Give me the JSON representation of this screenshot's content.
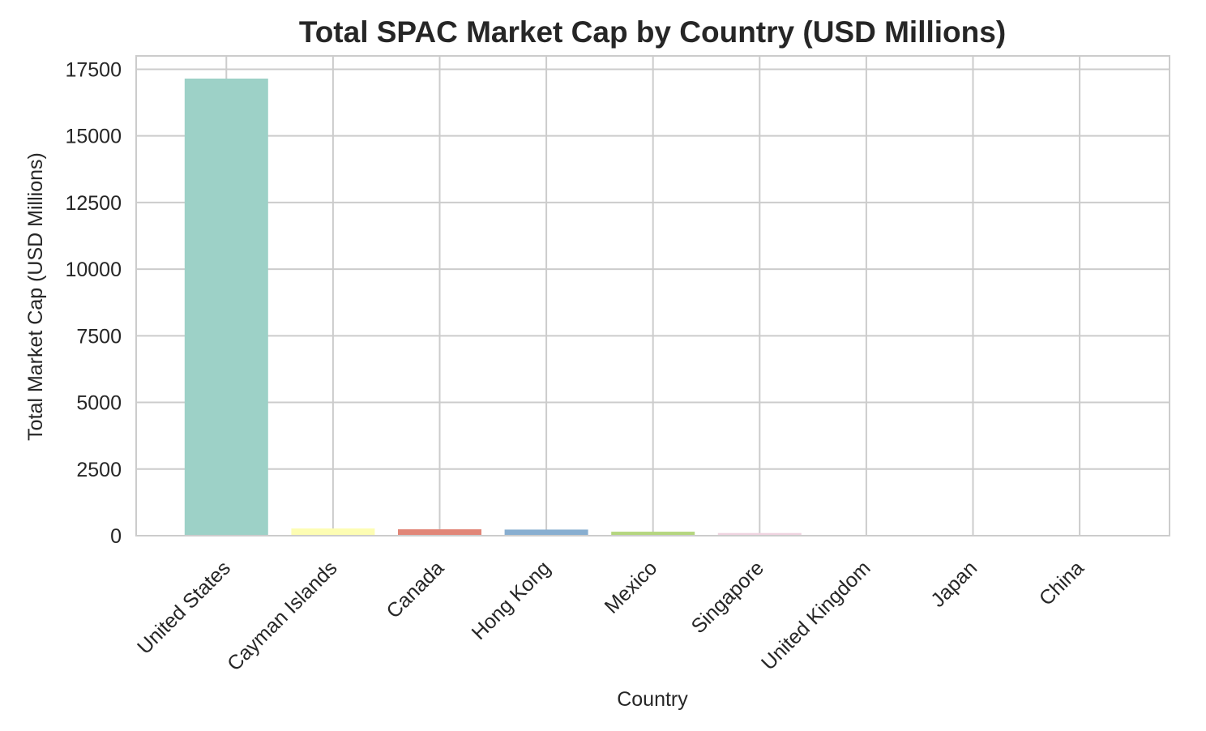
{
  "chart_data": {
    "type": "bar",
    "title": "Total SPAC Market Cap by Country (USD Millions)",
    "xlabel": "Country",
    "ylabel": "Total Market Cap (USD Millions)",
    "categories": [
      "United States",
      "Cayman Islands",
      "Canada",
      "Hong Kong",
      "Mexico",
      "Singapore",
      "United Kingdom",
      "Japan",
      "China"
    ],
    "values": [
      17150,
      270,
      240,
      230,
      150,
      100,
      30,
      15,
      10
    ],
    "colors": [
      "#9dd1c7",
      "#fdfdb3",
      "#e18678",
      "#88aed0",
      "#b5d67f",
      "#f0d3e0",
      "#dddddd",
      "#dddddd",
      "#dddddd"
    ],
    "ylim": [
      0,
      18000
    ],
    "yticks": [
      0,
      2500,
      5000,
      7500,
      10000,
      12500,
      15000,
      17500
    ],
    "grid": true
  }
}
